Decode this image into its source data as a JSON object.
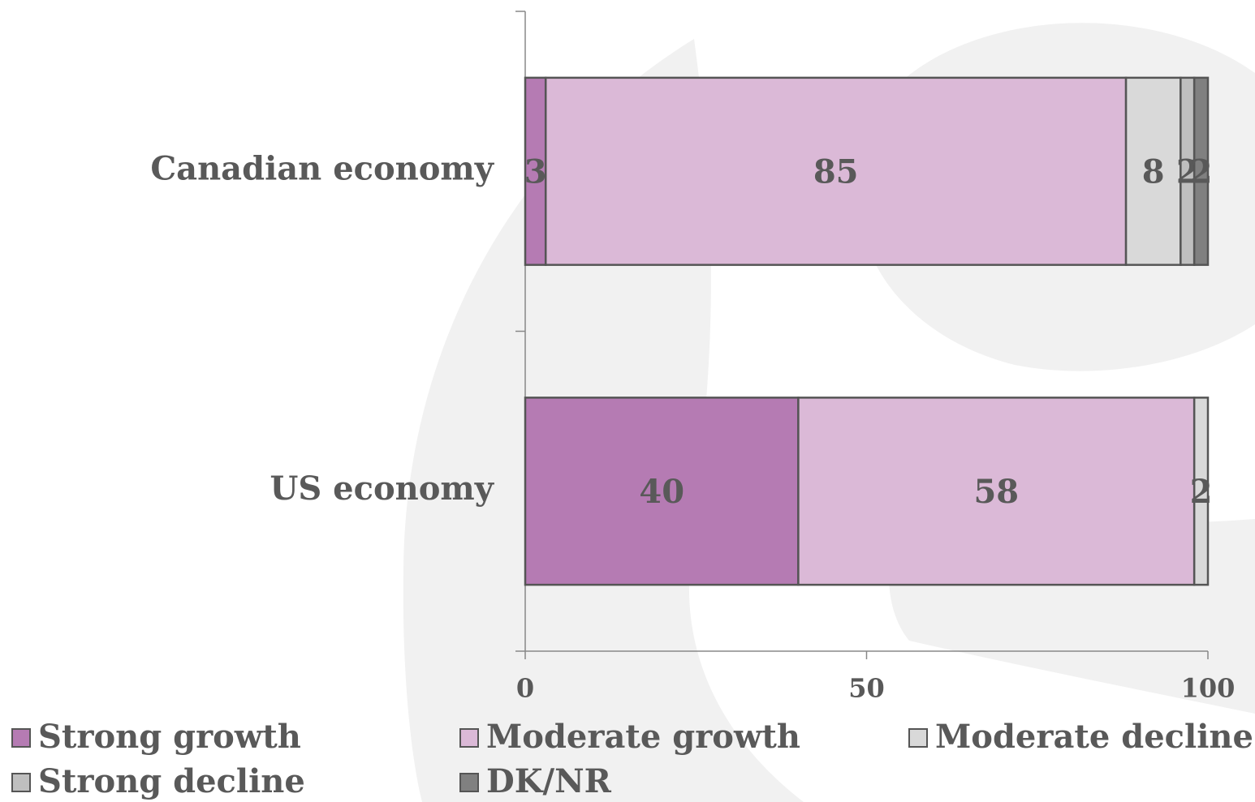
{
  "chart_data": {
    "type": "stacked_barh",
    "categories": [
      "Canadian economy",
      "US economy"
    ],
    "series": [
      {
        "name": "Strong growth",
        "color": "#b57bb3",
        "values": [
          3,
          40
        ]
      },
      {
        "name": "Moderate growth",
        "color": "#dbb9d7",
        "values": [
          85,
          58
        ]
      },
      {
        "name": "Moderate decline",
        "color": "#d9d9d9",
        "values": [
          8,
          2
        ]
      },
      {
        "name": "Strong decline",
        "color": "#bfbfbf",
        "values": [
          2,
          null
        ]
      },
      {
        "name": "DK/NR",
        "color": "#808080",
        "values": [
          2,
          null
        ]
      }
    ],
    "xlim": [
      0,
      100
    ],
    "xticks": [
      0,
      50,
      100
    ],
    "legend": "bottom"
  }
}
